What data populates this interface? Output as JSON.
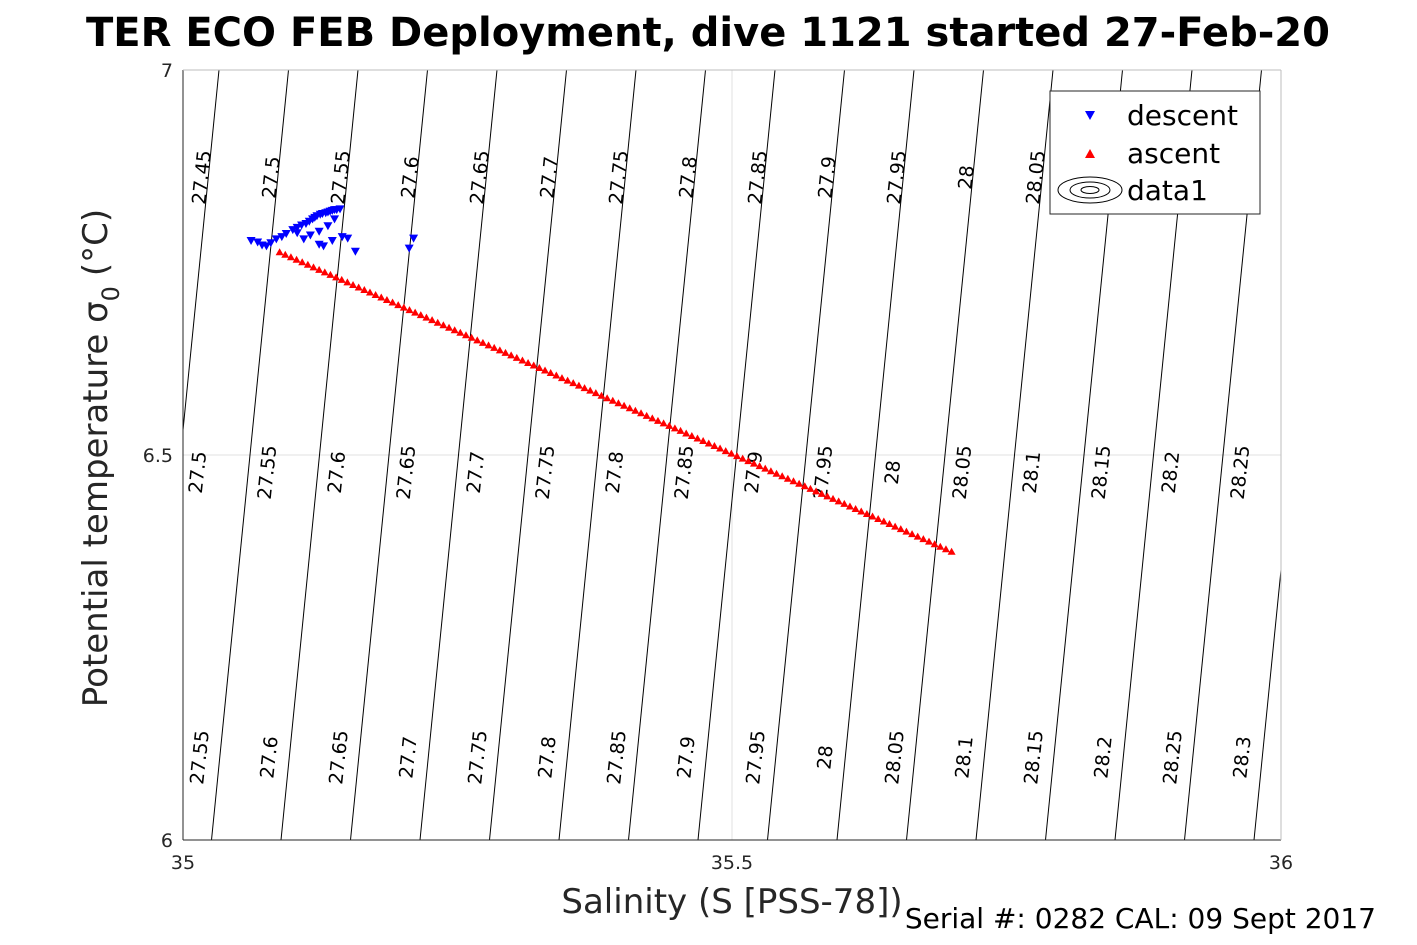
{
  "footer": "Serial #: 0282  CAL: 09 Sept 2017",
  "chart_data": {
    "type": "scatter",
    "title": "TER ECO FEB Deployment, dive 1121 started 27-Feb-20",
    "xlabel": "Salinity (S [PSS-78])",
    "ylabel": "Potential temperature σ",
    "ylabel_subscript": "0",
    "ylabel_unit": "(°C)",
    "xlim": [
      35,
      36
    ],
    "ylim": [
      6,
      7
    ],
    "xticks": [
      "35",
      "35.5",
      "36"
    ],
    "yticks": [
      "6",
      "6.5",
      "7"
    ],
    "grid": true,
    "legend_position": "top-right",
    "legend": [
      "descent",
      "ascent",
      "data1"
    ],
    "colors": {
      "descent": "#0000ff",
      "ascent": "#ff0000",
      "contour": "#000000",
      "grid": "#e0e0e0"
    },
    "series": [
      {
        "name": "descent",
        "marker": "triangle-down",
        "x": [
          35.062,
          35.068,
          35.072,
          35.076,
          35.08,
          35.085,
          35.09,
          35.094,
          35.1,
          35.104,
          35.108,
          35.112,
          35.115,
          35.118,
          35.12,
          35.122,
          35.125,
          35.127,
          35.13,
          35.132,
          35.134,
          35.136,
          35.138,
          35.14,
          35.143,
          35.138,
          35.132,
          35.124,
          35.116,
          35.11,
          35.104,
          35.124,
          35.128,
          35.136,
          35.145,
          35.15,
          35.157,
          35.206,
          35.21
        ],
        "y": [
          6.778,
          6.776,
          6.772,
          6.771,
          6.775,
          6.78,
          6.783,
          6.787,
          6.792,
          6.795,
          6.798,
          6.8,
          6.803,
          6.806,
          6.808,
          6.81,
          6.812,
          6.813,
          6.814,
          6.815,
          6.816,
          6.817,
          6.818,
          6.818,
          6.819,
          6.806,
          6.797,
          6.79,
          6.785,
          6.78,
          6.788,
          6.773,
          6.771,
          6.778,
          6.783,
          6.781,
          6.764,
          6.768,
          6.781
        ]
      },
      {
        "name": "ascent",
        "marker": "triangle-up",
        "x": [
          35.088,
          35.7
        ],
        "y": [
          6.764,
          6.375
        ],
        "n_points": 120
      }
    ],
    "contours": {
      "levels_top": [
        "27.45",
        "27.5",
        "27.55",
        "27.6",
        "27.65",
        "27.7",
        "27.75",
        "27.8",
        "27.85",
        "27.9",
        "27.95",
        "28",
        "28.05"
      ],
      "levels_mid": [
        "27.5",
        "27.55",
        "27.6",
        "27.65",
        "27.7",
        "27.75",
        "27.8",
        "27.85",
        "27.9",
        "27.95",
        "28",
        "28.05",
        "28.1",
        "28.15",
        "28.2",
        "28.25"
      ],
      "levels_bottom": [
        "27.55",
        "27.6",
        "27.65",
        "27.7",
        "27.75",
        "27.8",
        "27.85",
        "27.9",
        "27.95",
        "28",
        "28.05",
        "28.1",
        "28.15",
        "28.2",
        "28.25",
        "28.3"
      ]
    }
  }
}
